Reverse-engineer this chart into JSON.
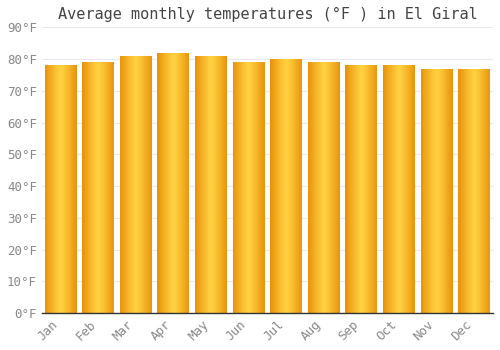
{
  "title": "Average monthly temperatures (°F ) in El Giral",
  "months": [
    "Jan",
    "Feb",
    "Mar",
    "Apr",
    "May",
    "Jun",
    "Jul",
    "Aug",
    "Sep",
    "Oct",
    "Nov",
    "Dec"
  ],
  "values": [
    78,
    79,
    81,
    82,
    81,
    79,
    80,
    79,
    78,
    78,
    77,
    77
  ],
  "bar_color_edge": "#E8920A",
  "bar_color_mid": "#FFD040",
  "background_color": "#FFFFFF",
  "grid_color": "#E8E8F0",
  "text_color": "#888888",
  "title_color": "#444444",
  "ylim": [
    0,
    90
  ],
  "yticks": [
    0,
    10,
    20,
    30,
    40,
    50,
    60,
    70,
    80,
    90
  ],
  "ytick_labels": [
    "0°F",
    "10°F",
    "20°F",
    "30°F",
    "40°F",
    "50°F",
    "60°F",
    "70°F",
    "80°F",
    "90°F"
  ],
  "title_fontsize": 11,
  "tick_fontsize": 9,
  "bar_width": 0.85
}
